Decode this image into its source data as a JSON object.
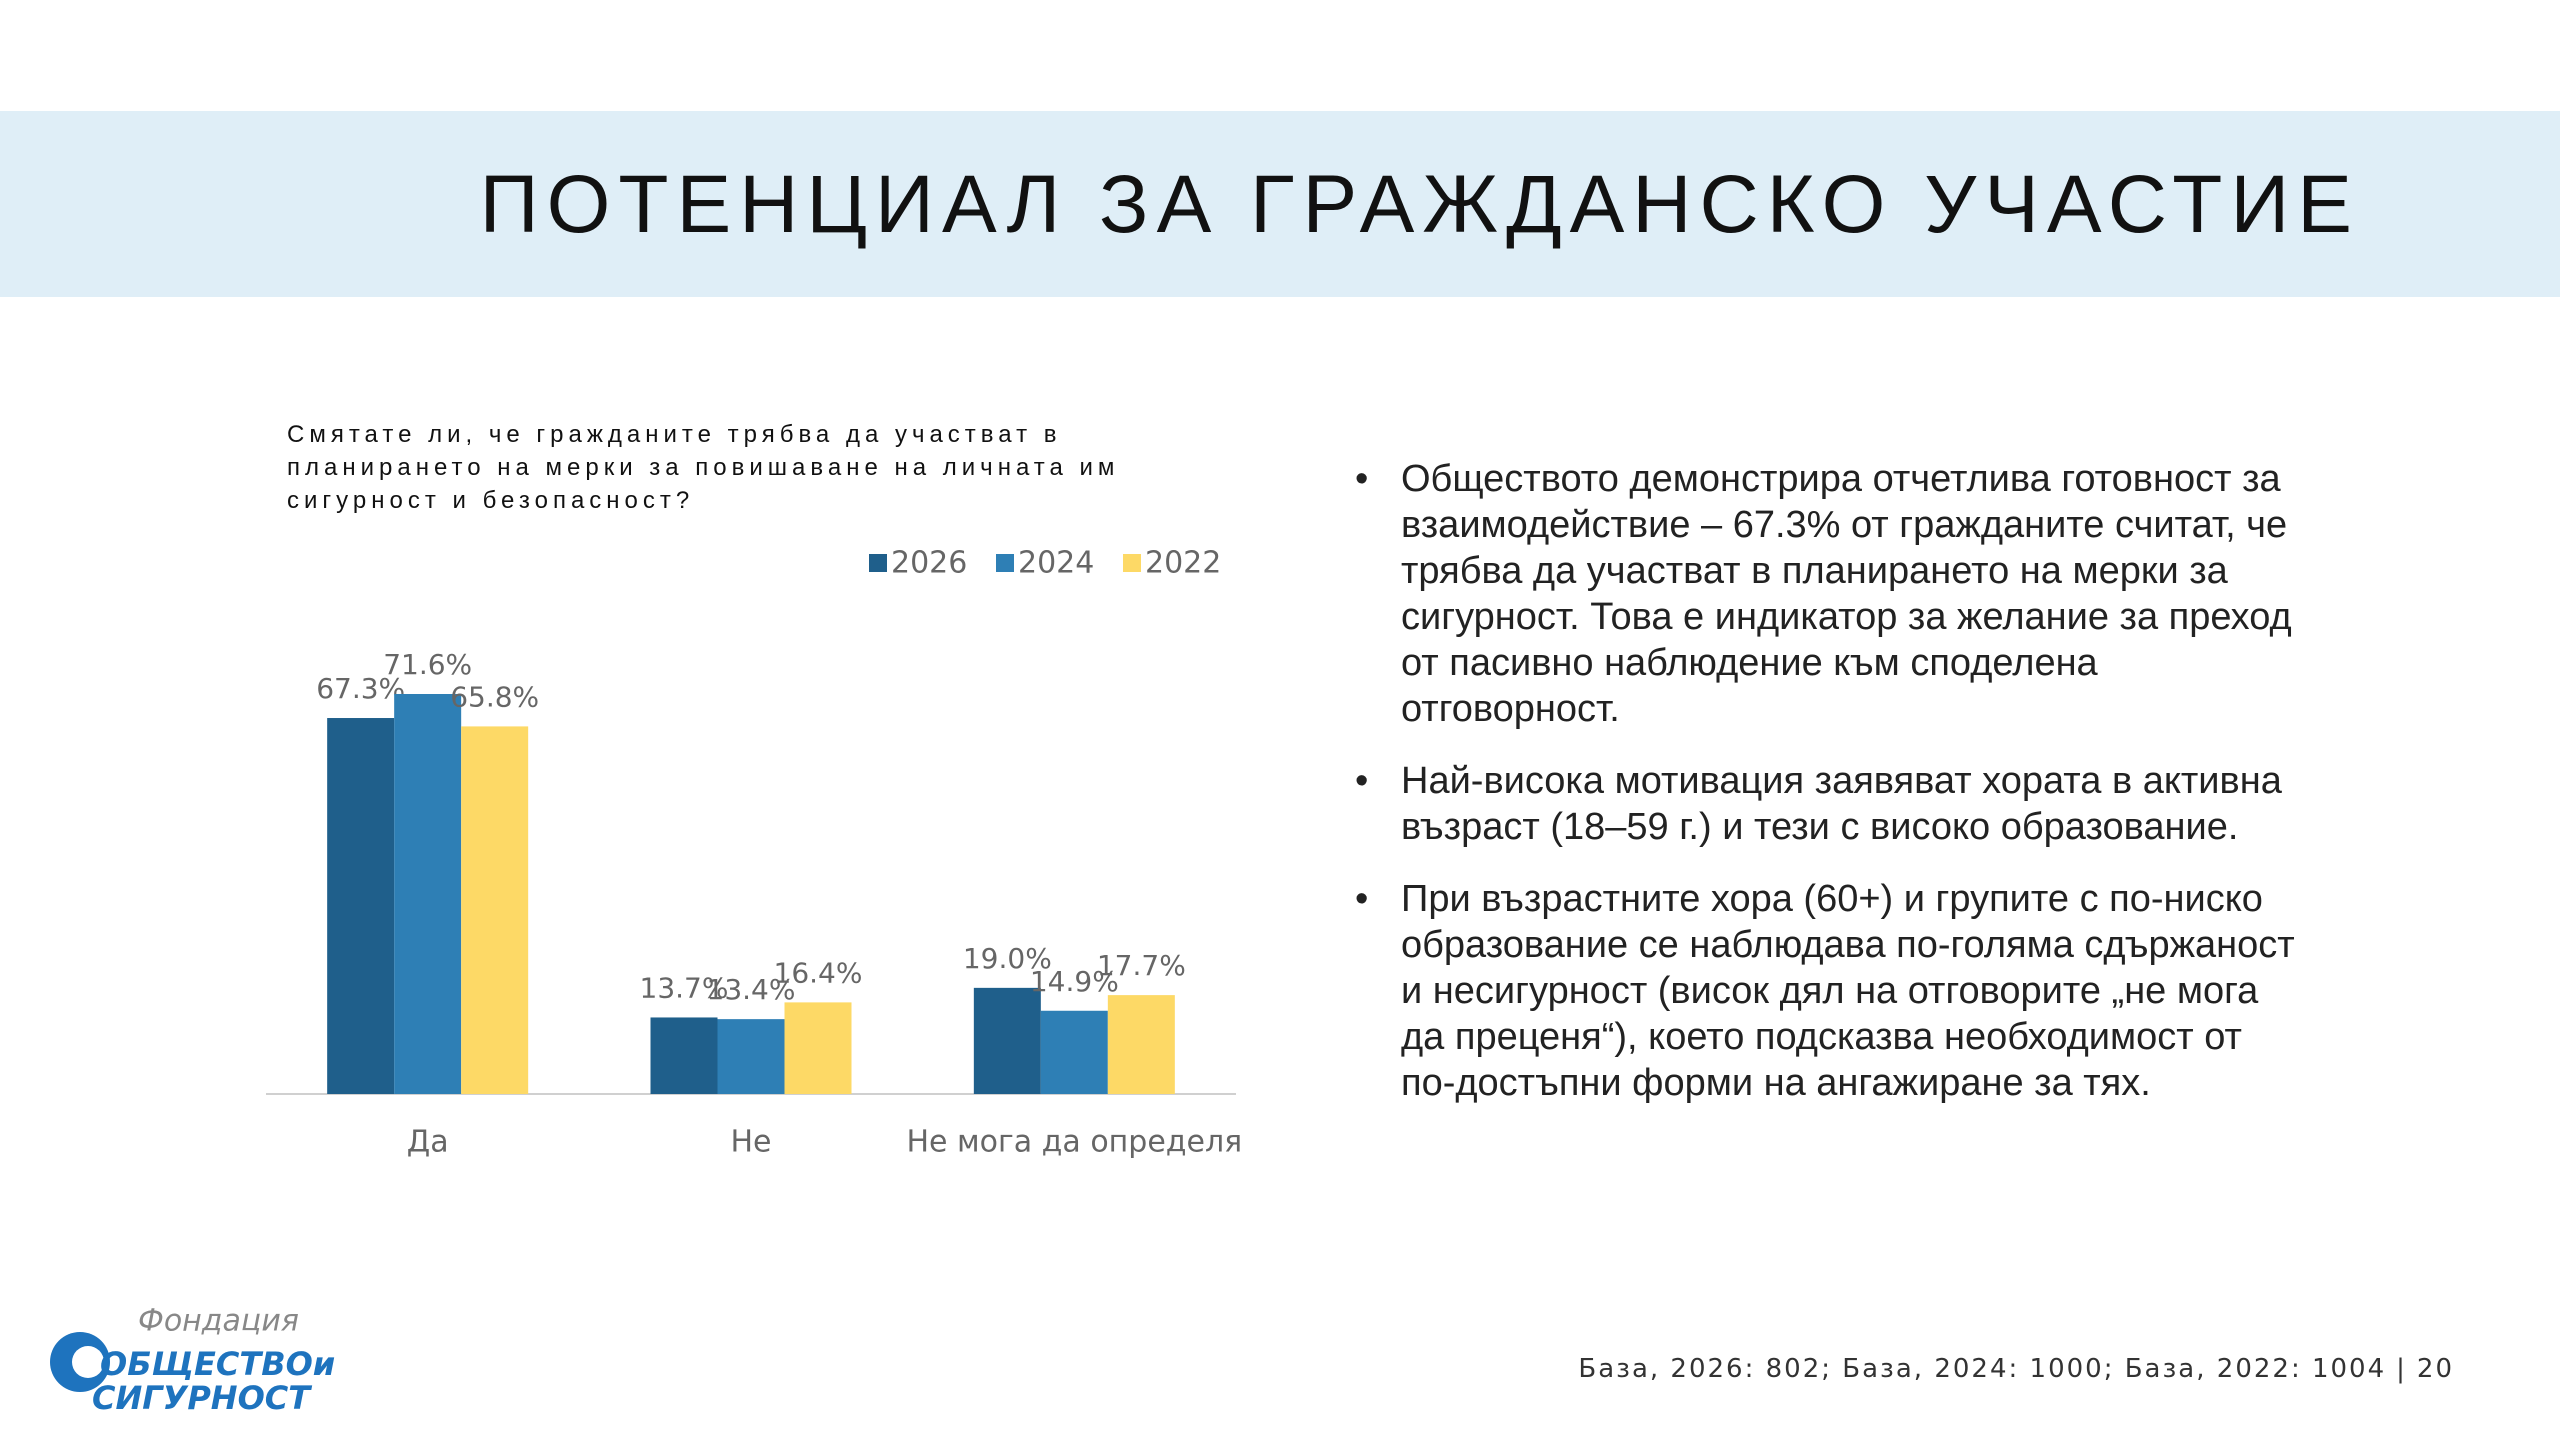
{
  "header": {
    "title": "ПОТЕНЦИАЛ ЗА ГРАЖДАНСКО УЧАСТИЕ"
  },
  "chart_data": {
    "type": "bar",
    "title": "Смятате ли, че гражданите трябва да участват в планирането на мерки за повишаване на личната им сигурност и безопасност?",
    "categories": [
      "Да",
      "Не",
      "Не мога да определя"
    ],
    "series": [
      {
        "name": "2026",
        "color": "#1f5f8b",
        "values": [
          67.3,
          13.7,
          19.0
        ],
        "value_labels": [
          "67.3%",
          "13.7%",
          "19.0%"
        ]
      },
      {
        "name": "2024",
        "color": "#2e7fb5",
        "values": [
          71.6,
          13.4,
          14.9
        ],
        "value_labels": [
          "71.6%",
          "13.4%",
          "14.9%"
        ]
      },
      {
        "name": "2022",
        "color": "#fdd966",
        "values": [
          65.8,
          16.4,
          17.7
        ],
        "value_labels": [
          "65.8%",
          "16.4%",
          "17.7%"
        ]
      }
    ],
    "legend": "top-right"
  },
  "bullets": [
    "Обществото демонстрира отчетлива готовност за взаимодействие – 67.3% от гражданите считат, че трябва да участват в планирането на мерки за сигурност. Това е индикатор за желание за преход от пасивно наблюдение към споделена отговорност.",
    "Най-висока мотивация заявяват хората в активна възраст (18–59 г.) и тези с високо образование.",
    "При възрастните хора (60+) и групите с по-ниско образование се наблюдава по-голяма сдържаност и несигурност (висок дял на отговорите „не мога да преценя“), което подсказва необходимост от по-достъпни форми на ангажиране за тях."
  ],
  "footer": {
    "base": "База, 2026: 802; База, 2024: 1000; База, 2022: 1004",
    "separator": "|",
    "page": "20"
  },
  "logo": {
    "script": "Фондация",
    "line1": "ОБЩЕСТВОи",
    "line2": "СИГУРНОСТ"
  }
}
